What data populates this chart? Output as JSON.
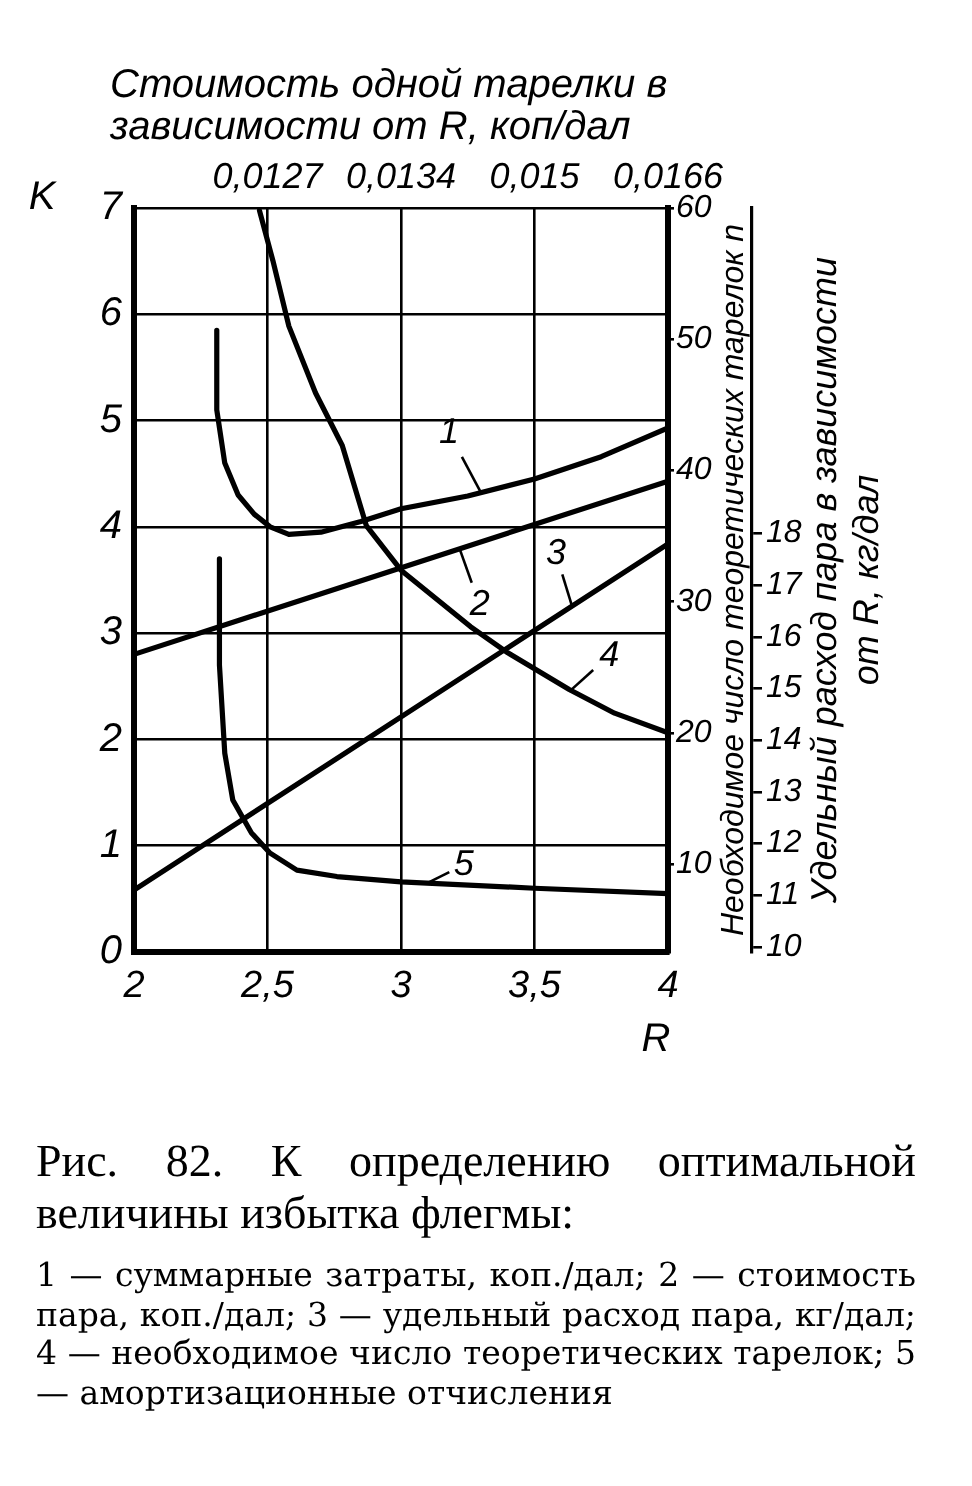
{
  "chart_data": {
    "type": "line",
    "xlabel": "R",
    "ylabel": "K",
    "x2label": "Стоимость одной тарелки в зависимости от R, коп/дал",
    "y2label": "Необходимое число теоретических тарелок n",
    "y3label": "Удельный расход пара в зависимости от R, кг/дал",
    "xlim": [
      2,
      4
    ],
    "xticks": [
      2,
      {
        "value": 2.5,
        "label": "2,5"
      },
      3,
      {
        "value": 3.5,
        "label": "3,5"
      },
      4
    ],
    "ylim": [
      0,
      7
    ],
    "yticks": [
      0,
      1,
      2,
      3,
      4,
      5,
      6,
      7
    ],
    "y2lim": [
      3.3,
      60
    ],
    "y2ticks": [
      10,
      20,
      30,
      40,
      50,
      60
    ],
    "y3lim": [
      9.9,
      24.3
    ],
    "y3ticks": [
      10,
      11,
      12,
      13,
      14,
      15,
      16,
      17,
      18
    ],
    "grid": true,
    "series": [
      {
        "color": "#000000",
        "x": [
          2.31,
          2.31,
          2.34,
          2.39,
          2.45,
          2.51,
          2.58,
          2.7,
          2.85,
          3.0,
          3.25,
          3.5,
          3.75,
          4.0
        ],
        "values": [
          5.85,
          5.1,
          4.6,
          4.3,
          4.12,
          4.0,
          3.93,
          3.95,
          4.05,
          4.17,
          4.29,
          4.45,
          4.66,
          4.93
        ]
      },
      {
        "color": "#000000",
        "x": [
          2,
          4
        ],
        "values": [
          2.8,
          4.43
        ]
      },
      {
        "color": "#000000",
        "axis": "y3",
        "x": [
          2,
          4
        ],
        "values": [
          11.1,
          17.8
        ]
      },
      {
        "color": "#000000",
        "axis": "y2",
        "x": [
          2.47,
          2.52,
          2.58,
          2.68,
          2.78,
          2.87,
          3.0,
          3.26,
          3.4,
          3.63,
          3.8,
          4.0
        ],
        "values": [
          59.8,
          56.0,
          51.0,
          45.9,
          41.9,
          35.8,
          32.4,
          28.1,
          26.1,
          23.3,
          21.5,
          20.0
        ]
      },
      {
        "color": "#000000",
        "x": [
          2.32,
          2.32,
          2.34,
          2.37,
          2.44,
          2.51,
          2.61,
          2.76,
          3.0,
          3.5,
          4.0
        ],
        "values": [
          3.7,
          2.7,
          1.87,
          1.43,
          1.12,
          0.93,
          0.77,
          0.71,
          0.66,
          0.6,
          0.55
        ]
      }
    ],
    "annotations": [
      {
        "text": "1",
        "x": 3.3,
        "y": 4.32
      },
      {
        "text": "2",
        "x": 3.22,
        "y": 3.79
      },
      {
        "text": "3",
        "x": 3.64,
        "y": 3.26
      },
      {
        "text": "4",
        "x": 3.63,
        "y": 2.45
      },
      {
        "text": "5",
        "x": 3.1,
        "y": 0.65
      },
      "0,0127",
      "0,0134",
      "0,015",
      "0,0166",
      "Рис. 82. К определению оптимальной величины избытка флегмы:",
      "1 — суммарные затраты, коп./дал; 2 — стоимость пара, коп./дал; 3 — удельный расход пара, кг/дал; 4 — необходимое число теоретических тарелок; 5 — амортизационные отчисления"
    ]
  }
}
